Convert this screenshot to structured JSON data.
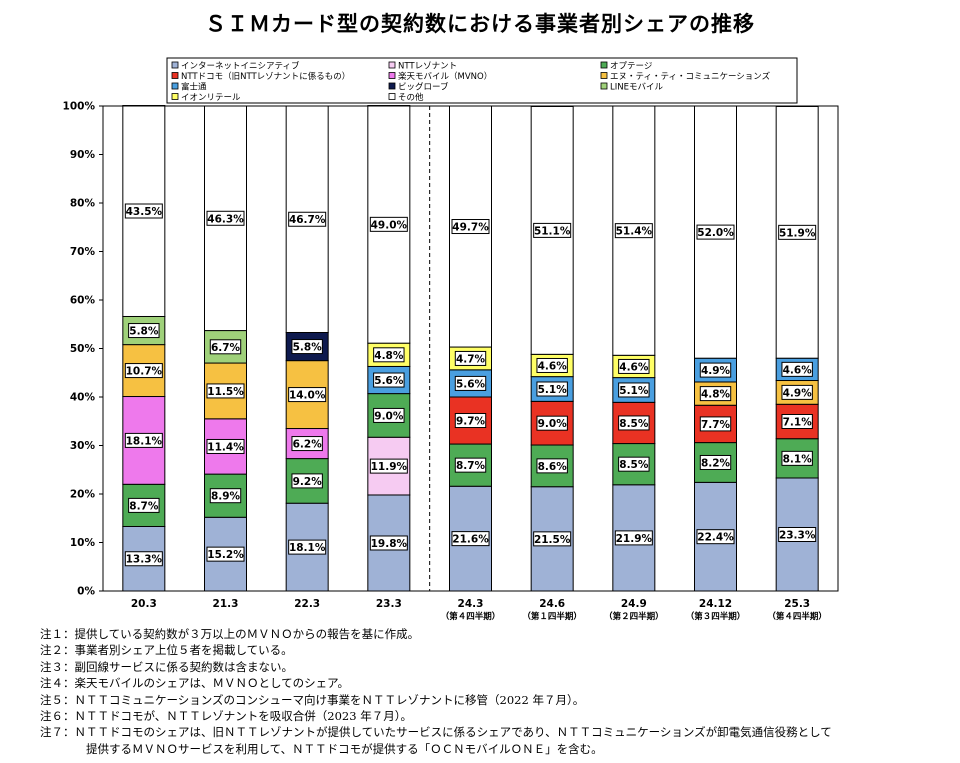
{
  "title": "ＳＩＭカード型の契約数における事業者別シェアの推移",
  "chart_data": {
    "type": "bar",
    "stacked": true,
    "ylim": [
      0,
      100
    ],
    "yticks": [
      "0%",
      "10%",
      "20%",
      "30%",
      "40%",
      "50%",
      "60%",
      "70%",
      "80%",
      "90%",
      "100%"
    ],
    "grid": false,
    "legend_position": "top",
    "categories": [
      "20.3",
      "21.3",
      "22.3",
      "23.3",
      "24.3",
      "24.6",
      "24.9",
      "24.12",
      "25.3"
    ],
    "category_sublabels": [
      "",
      "",
      "",
      "",
      "（第４四半期）",
      "（第１四半期）",
      "（第２四半期）",
      "（第３四半期）",
      "（第４四半期）"
    ],
    "divider_after_index": 3,
    "series": [
      {
        "name": "インターネットイニシアティブ",
        "color": "#9fb2d6",
        "values": [
          13.3,
          15.2,
          18.1,
          19.8,
          21.6,
          21.5,
          21.9,
          22.4,
          23.3
        ]
      },
      {
        "name": "オプテージ",
        "color": "#4eab55",
        "values": [
          8.7,
          8.9,
          9.2,
          null,
          8.7,
          8.6,
          8.5,
          8.2,
          8.1
        ]
      },
      {
        "name": "NTTレゾナント",
        "color": "#f6cbf2",
        "values": [
          null,
          null,
          null,
          11.9,
          null,
          null,
          null,
          null,
          null
        ]
      },
      {
        "name": "楽天モバイル（MVNO）",
        "color": "#ee79ec",
        "values": [
          18.1,
          11.4,
          6.2,
          null,
          null,
          null,
          null,
          null,
          null
        ]
      },
      {
        "name": "NTTドコモ（旧NTTレゾナントに係るもの）",
        "color": "#e93223",
        "values": [
          null,
          null,
          null,
          null,
          9.7,
          9.0,
          8.5,
          7.7,
          7.1
        ]
      },
      {
        "name": "オプテージ",
        "color": "#4eab55",
        "values": [
          null,
          null,
          null,
          9.0,
          null,
          null,
          null,
          null,
          null
        ]
      },
      {
        "name": "エヌ・ティ・ティ・コミュニケーションズ",
        "color": "#f6c142",
        "values": [
          10.7,
          11.5,
          14.0,
          null,
          null,
          null,
          null,
          4.8,
          4.9
        ]
      },
      {
        "name": "富士通",
        "color": "#4a9fe0",
        "values": [
          null,
          null,
          null,
          5.6,
          5.6,
          5.1,
          5.1,
          4.9,
          4.6
        ]
      },
      {
        "name": "ビッグローブ",
        "color": "#0e1a4e",
        "values": [
          null,
          null,
          5.8,
          null,
          null,
          null,
          null,
          null,
          null
        ]
      },
      {
        "name": "LINEモバイル",
        "color": "#9fd17a",
        "values": [
          5.8,
          6.7,
          null,
          null,
          null,
          null,
          null,
          null,
          null
        ]
      },
      {
        "name": "イオンリテール",
        "color": "#ffff66",
        "values": [
          null,
          null,
          null,
          4.8,
          4.7,
          4.6,
          4.6,
          null,
          null
        ]
      },
      {
        "name": "その他",
        "color": "#ffffff",
        "values": [
          43.5,
          46.3,
          46.7,
          49.0,
          49.7,
          51.1,
          51.4,
          52.0,
          51.9
        ]
      }
    ],
    "legend": [
      {
        "name": "インターネットイニシアティブ",
        "color": "#9fb2d6"
      },
      {
        "name": "NTTレゾナント",
        "color": "#f6cbf2"
      },
      {
        "name": "オプテージ",
        "color": "#4eab55"
      },
      {
        "name": "NTTドコモ（旧NTTレゾナントに係るもの）",
        "color": "#e93223"
      },
      {
        "name": "楽天モバイル（MVNO）",
        "color": "#ee79ec"
      },
      {
        "name": "エヌ・ティ・ティ・コミュニケーションズ",
        "color": "#f6c142"
      },
      {
        "name": "富士通",
        "color": "#4a9fe0"
      },
      {
        "name": "ビッグローブ",
        "color": "#0e1a4e"
      },
      {
        "name": "LINEモバイル",
        "color": "#9fd17a"
      },
      {
        "name": "イオンリテール",
        "color": "#ffff66"
      },
      {
        "name": "その他",
        "color": "#ffffff"
      }
    ]
  },
  "notes": [
    [
      "注１：提供している契約数が３万以上のＭＶＮＯからの報告を基に作成。"
    ],
    [
      "注２：事業者別シェア上位５者を掲載している。"
    ],
    [
      "注３：副回線サービスに係る契約数は含まない。"
    ],
    [
      "注４：楽天モバイルのシェアは、ＭＶＮＯとしてのシェア。"
    ],
    [
      "注５：ＮＴＴコミュニケーションズのコンシューマ向け事業をＮＴＴレゾナントに移管（2022 年７月）。"
    ],
    [
      "注６：ＮＴＴドコモが、ＮＴＴレゾナントを吸収合併（2023 年７月）。"
    ],
    [
      "注７：ＮＴＴドコモのシェアは、旧ＮＴＴレゾナントが提供していたサービスに係るシェアであり、ＮＴＴコミュニケーションズが卸電気通信役務として",
      "提供するＭＶＮＯサービスを利用して、ＮＴＴドコモが提供する「ＯＣＮモバイルＯＮＥ」を含む。"
    ]
  ]
}
